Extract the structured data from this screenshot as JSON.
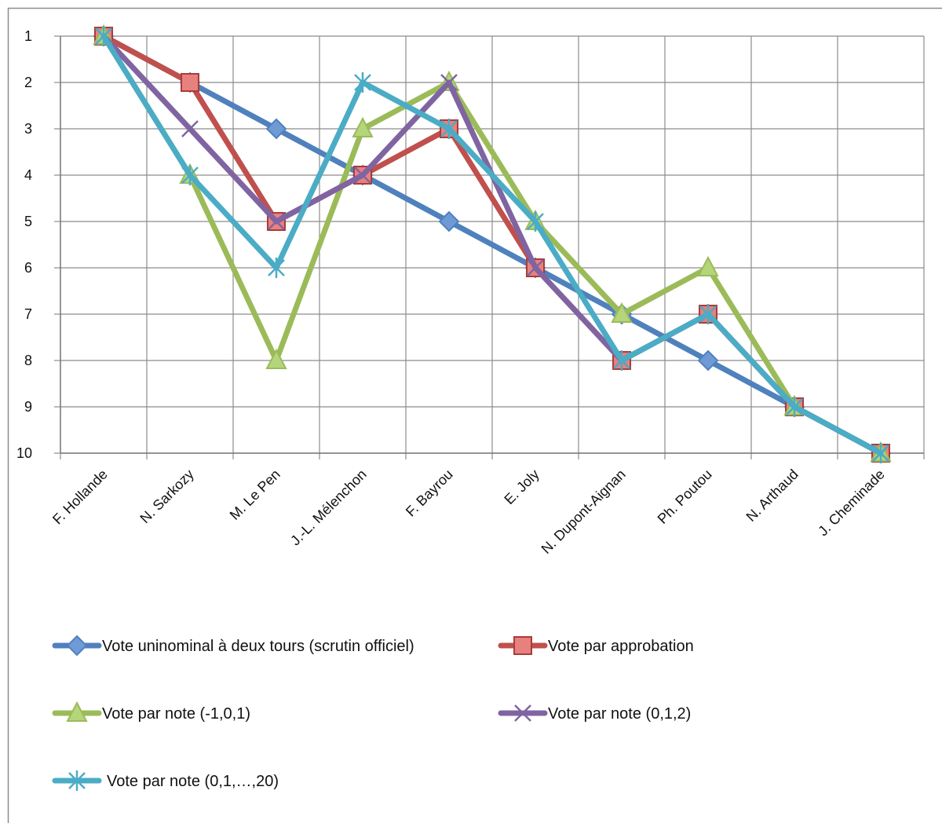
{
  "chart_data": {
    "type": "line",
    "title": "",
    "xlabel": "",
    "ylabel": "",
    "categories": [
      "F. Hollande",
      "N. Sarkozy",
      "M. Le Pen",
      "J.-L. Mélenchon",
      "F. Bayrou",
      "E. Joly",
      "N. Dupont-Aignan",
      "Ph. Poutou",
      "N. Arthaud",
      "J. Cheminade"
    ],
    "y_ticks": [
      "1",
      "2",
      "3",
      "4",
      "5",
      "6",
      "7",
      "8",
      "9",
      "10"
    ],
    "ylim": [
      1,
      10
    ],
    "y_reversed": true,
    "grid": true,
    "legend_position": "bottom",
    "series": [
      {
        "name": "Vote uninominal à deux tours (scrutin officiel)",
        "marker": "diamond",
        "color": "#4f81bd",
        "marker_fill": "#6f9ad6",
        "values": [
          1,
          2,
          3,
          4,
          5,
          6,
          7,
          8,
          9,
          10
        ]
      },
      {
        "name": "Vote par approbation",
        "marker": "square",
        "color": "#c0504d",
        "marker_fill": "#e8817e",
        "values": [
          1,
          2,
          5,
          4,
          3,
          6,
          8,
          7,
          9,
          10
        ]
      },
      {
        "name": "Vote par note (-1,0,1)",
        "marker": "triangle",
        "color": "#9bbb59",
        "marker_fill": "#b5d57a",
        "values": [
          1,
          4,
          8,
          3,
          2,
          5,
          7,
          6,
          9,
          10
        ]
      },
      {
        "name": "Vote par note (0,1,2)",
        "marker": "x",
        "color": "#8064a2",
        "marker_fill": "#8064a2",
        "values": [
          1,
          3,
          5,
          4,
          2,
          6,
          8,
          7,
          9,
          10
        ]
      },
      {
        "name": "Vote par note (0,1,…,20)",
        "marker": "star",
        "color": "#4bacc6",
        "marker_fill": "#4bacc6",
        "values": [
          1,
          4,
          6,
          2,
          3,
          5,
          8,
          7,
          9,
          10
        ]
      }
    ]
  }
}
